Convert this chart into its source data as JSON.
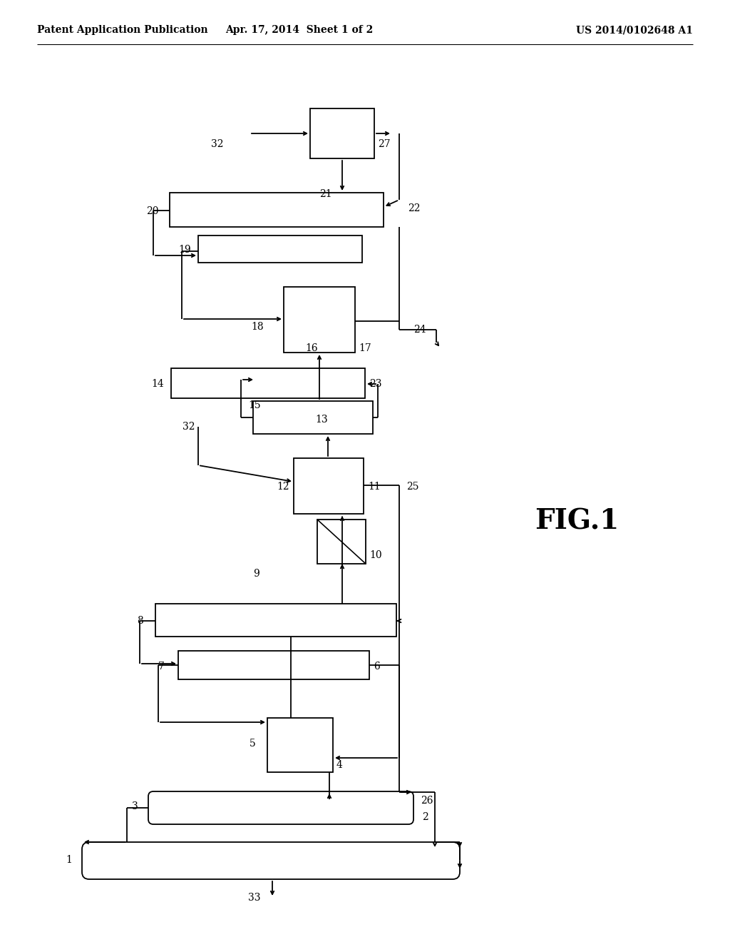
{
  "title_left": "Patent Application Publication",
  "title_mid": "Apr. 17, 2014  Sheet 1 of 2",
  "title_right": "US 2014/0102648 A1",
  "fig_label": "FIG.1",
  "bg": "#ffffff",
  "lw": 1.3,
  "fs": 10
}
